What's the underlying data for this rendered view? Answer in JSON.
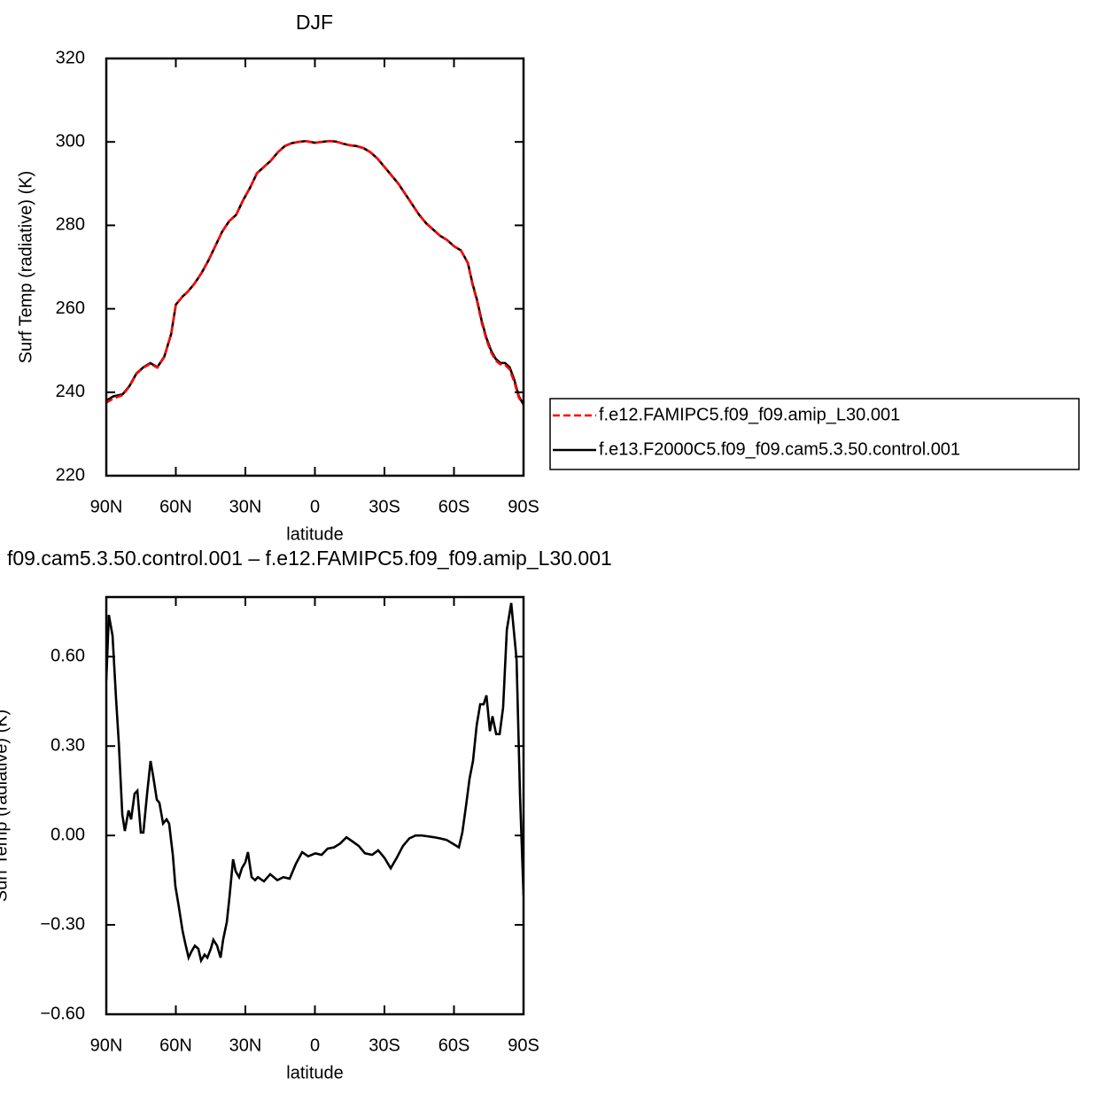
{
  "chart_data": [
    {
      "type": "line",
      "title": "DJF",
      "xlabel": "latitude",
      "ylabel": "Surf Temp (radiative) (K)",
      "x": [
        90,
        87,
        83,
        80,
        77,
        74,
        71,
        68,
        65,
        62,
        60,
        57,
        55,
        52,
        49,
        46,
        43,
        40,
        37,
        34,
        31,
        28,
        25,
        22,
        19,
        16,
        13,
        10,
        7,
        4,
        2,
        0,
        -3,
        -6,
        -9,
        -12,
        -15,
        -18,
        -21,
        -24,
        -27,
        -30,
        -33,
        -36,
        -39,
        -42,
        -45,
        -48,
        -51,
        -54,
        -57,
        -60,
        -63,
        -66,
        -68,
        -70,
        -72,
        -74,
        -76,
        -78,
        -80,
        -82,
        -84,
        -86,
        -88,
        -90
      ],
      "series": [
        {
          "name": "f.e12.FAMIPC5.f09_f09.amip_L30.001",
          "color": "#ff0000",
          "linestyle": "dashed",
          "values": [
            237.5,
            238.5,
            239.3,
            241.4,
            244.4,
            245.9,
            246.8,
            245.9,
            248.4,
            254,
            261,
            263,
            264,
            266,
            268.5,
            271.5,
            275,
            278.5,
            281,
            282.5,
            286,
            289,
            292.5,
            294,
            295.5,
            297.5,
            299,
            299.7,
            300,
            300.2,
            300,
            299.8,
            300,
            300.2,
            300.1,
            299.6,
            299.2,
            299,
            298.5,
            297.5,
            296,
            294,
            292,
            290,
            287.5,
            285,
            282.5,
            280.5,
            279,
            277.5,
            276.5,
            275,
            274,
            270.9,
            265.8,
            261.7,
            256.6,
            252.6,
            249.6,
            247.6,
            246.7,
            246.6,
            245.5,
            242.5,
            238.7,
            237
          ]
        },
        {
          "name": "f.e13.F2000C5.f09_f09.cam5.3.50.control.001",
          "color": "#000000",
          "linestyle": "solid",
          "values": [
            238,
            239,
            239.5,
            241.5,
            244.5,
            246,
            247,
            246,
            248.5,
            254,
            261,
            263,
            264,
            266,
            268.5,
            271.5,
            275,
            278.5,
            281,
            282.5,
            286,
            289,
            292.5,
            294,
            295.5,
            297.5,
            299,
            299.7,
            300,
            300.2,
            300,
            299.8,
            300,
            300.2,
            300.1,
            299.6,
            299.2,
            299,
            298.5,
            297.5,
            296,
            294,
            292,
            290,
            287.5,
            285,
            282.5,
            280.5,
            279,
            277.5,
            276.5,
            275,
            274,
            271,
            266,
            262,
            257,
            253,
            250,
            248,
            247,
            247,
            246,
            243,
            239,
            237
          ]
        }
      ],
      "xlim": [
        90,
        -90
      ],
      "xticks": [
        {
          "value": 90,
          "label": "90N"
        },
        {
          "value": 60,
          "label": "60N"
        },
        {
          "value": 30,
          "label": "30N"
        },
        0,
        {
          "value": -30,
          "label": "30S"
        },
        {
          "value": -60,
          "label": "60S"
        },
        {
          "value": -90,
          "label": "90S"
        }
      ],
      "ylim": [
        220,
        320
      ],
      "yticks": [
        220,
        240,
        260,
        280,
        300,
        320
      ],
      "legend": "right"
    },
    {
      "type": "line",
      "title": "f09.cam5.3.50.control.001 – f.e12.FAMIPC5.f09_f09.amip_L30.001",
      "xlabel": "latitude",
      "ylabel": "Surf Temp (radiative) (K)",
      "x": [
        90,
        88.9,
        87.3,
        85.8,
        84.6,
        83.1,
        82,
        80.4,
        79.3,
        77.8,
        76.6,
        75.1,
        74,
        72.4,
        70.9,
        69.8,
        68.2,
        67.1,
        65.5,
        64,
        62.9,
        61.3,
        60.2,
        58.7,
        57.1,
        56,
        54.5,
        53.3,
        51.8,
        50.3,
        49.1,
        47.6,
        46.4,
        44.9,
        43.8,
        42.2,
        40.7,
        39.6,
        38,
        36.9,
        35.3,
        34.2,
        32.7,
        31.5,
        30,
        28.9,
        27.3,
        25.8,
        24.6,
        22,
        19.3,
        16.2,
        13.6,
        10.9,
        8.2,
        5.5,
        2.9,
        -0.2,
        -2.9,
        -5.5,
        -8.2,
        -10.9,
        -13.6,
        -16.2,
        -18.9,
        -21.6,
        -24.7,
        -27.3,
        -30,
        -32.7,
        -35.3,
        -38,
        -40.7,
        -43.4,
        -46,
        -48.7,
        -51.4,
        -54.1,
        -56.8,
        -59.4,
        -62.1,
        -63.6,
        -65.2,
        -66.7,
        -68.2,
        -69.8,
        -71.3,
        -72.8,
        -74,
        -75.5,
        -76.6,
        -78.2,
        -79.7,
        -81.2,
        -82.8,
        -84.7,
        -87,
        -88.5,
        -90
      ],
      "values": [
        0.52,
        0.74,
        0.67,
        0.46,
        0.31,
        0.07,
        0.015,
        0.084,
        0.054,
        0.14,
        0.15,
        0.01,
        0.01,
        0.14,
        0.25,
        0.2,
        0.12,
        0.11,
        0.04,
        0.054,
        0.04,
        -0.065,
        -0.17,
        -0.24,
        -0.32,
        -0.36,
        -0.41,
        -0.39,
        -0.37,
        -0.38,
        -0.42,
        -0.4,
        -0.41,
        -0.38,
        -0.35,
        -0.37,
        -0.41,
        -0.35,
        -0.29,
        -0.21,
        -0.08,
        -0.12,
        -0.14,
        -0.11,
        -0.09,
        -0.056,
        -0.14,
        -0.15,
        -0.14,
        -0.154,
        -0.13,
        -0.15,
        -0.14,
        -0.145,
        -0.095,
        -0.056,
        -0.07,
        -0.06,
        -0.065,
        -0.044,
        -0.04,
        -0.027,
        -0.006,
        -0.02,
        -0.035,
        -0.06,
        -0.065,
        -0.05,
        -0.075,
        -0.11,
        -0.075,
        -0.035,
        -0.01,
        0,
        0,
        -0.003,
        -0.006,
        -0.01,
        -0.015,
        -0.027,
        -0.04,
        0.01,
        0.1,
        0.19,
        0.25,
        0.37,
        0.44,
        0.44,
        0.47,
        0.35,
        0.4,
        0.34,
        0.34,
        0.43,
        0.69,
        0.78,
        0.59,
        0.13,
        -0.2
      ],
      "color": "#000000",
      "xlim": [
        90,
        -90
      ],
      "xticks": [
        {
          "value": 90,
          "label": "90N"
        },
        {
          "value": 60,
          "label": "60N"
        },
        {
          "value": 30,
          "label": "30N"
        },
        0,
        {
          "value": -30,
          "label": "30S"
        },
        {
          "value": -60,
          "label": "60S"
        },
        {
          "value": -90,
          "label": "90S"
        }
      ],
      "ylim": [
        -0.6,
        0.8
      ],
      "yticks": [
        {
          "value": -0.6,
          "label": "−0.60"
        },
        {
          "value": -0.3,
          "label": "−0.30"
        },
        {
          "value": 0,
          "label": "0.00"
        },
        {
          "value": 0.3,
          "label": "0.30"
        },
        {
          "value": 0.6,
          "label": "0.60"
        }
      ]
    }
  ]
}
